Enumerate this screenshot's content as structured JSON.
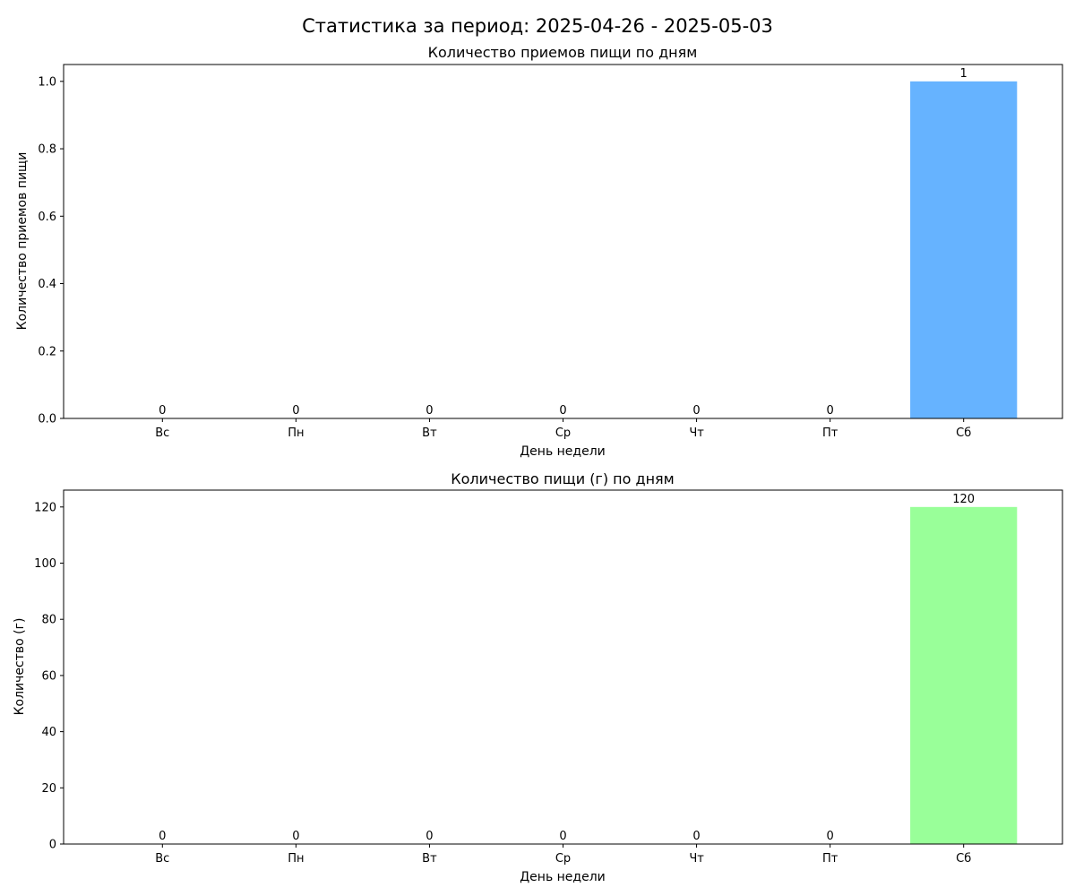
{
  "figure": {
    "suptitle": "Статистика за период: 2025-04-26 - 2025-05-03"
  },
  "chart_data": [
    {
      "type": "bar",
      "title": "Количество приемов пищи по дням",
      "xlabel": "День недели",
      "ylabel": "Количество приемов пищи",
      "categories": [
        "Вс",
        "Пн",
        "Вт",
        "Ср",
        "Чт",
        "Пт",
        "Сб"
      ],
      "values": [
        0,
        0,
        0,
        0,
        0,
        0,
        1
      ],
      "data_labels": [
        "0",
        "0",
        "0",
        "0",
        "0",
        "0",
        "1"
      ],
      "ylim": [
        0,
        1.05
      ],
      "yticks": [
        0.0,
        0.2,
        0.4,
        0.6,
        0.8,
        1.0
      ],
      "ytick_labels": [
        "0.0",
        "0.2",
        "0.4",
        "0.6",
        "0.8",
        "1.0"
      ],
      "bar_color": "#66b3ff",
      "grid": false
    },
    {
      "type": "bar",
      "title": "Количество пищи (г) по дням",
      "xlabel": "День недели",
      "ylabel": "Количество (г)",
      "categories": [
        "Вс",
        "Пн",
        "Вт",
        "Ср",
        "Чт",
        "Пт",
        "Сб"
      ],
      "values": [
        0,
        0,
        0,
        0,
        0,
        0,
        120
      ],
      "data_labels": [
        "0",
        "0",
        "0",
        "0",
        "0",
        "0",
        "120"
      ],
      "ylim": [
        0,
        126
      ],
      "yticks": [
        0,
        20,
        40,
        60,
        80,
        100,
        120
      ],
      "ytick_labels": [
        "0",
        "20",
        "40",
        "60",
        "80",
        "100",
        "120"
      ],
      "bar_color": "#99ff99",
      "grid": false
    }
  ]
}
